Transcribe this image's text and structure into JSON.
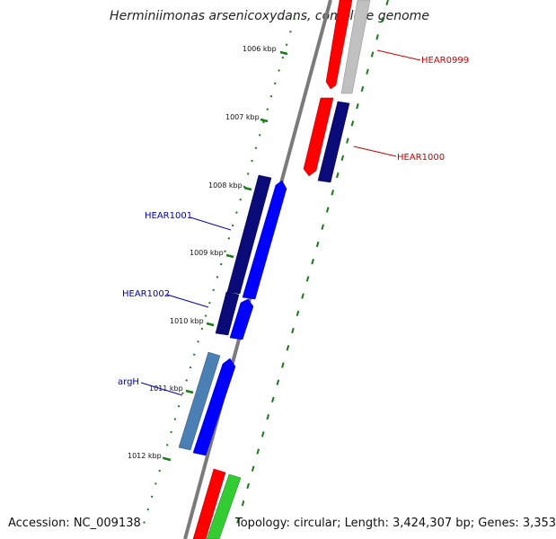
{
  "title": "Herminiimonas arsenicoxydans, complete genome",
  "footer": {
    "accession": "Accession: NC_009138",
    "info": "Topology: circular; Length: 3,424,307 bp; Genes: 3,353"
  },
  "ticks": [
    "1006 kbp",
    "1007 kbp",
    "1008 kbp",
    "1009 kbp",
    "1010 kbp",
    "1011 kbp",
    "1012 kbp"
  ],
  "genes": [
    {
      "label": "HEAR0999",
      "color": "#cc0000"
    },
    {
      "label": "HEAR1000",
      "color": "#cc0000"
    },
    {
      "label": "HEAR1001",
      "color": "#0000aa"
    },
    {
      "label": "HEAR1002",
      "color": "#0000aa"
    },
    {
      "label": "argH",
      "color": "#0000aa"
    }
  ],
  "colors": {
    "backbone": "#7a7a7a",
    "tick": "#1a7a1a",
    "red": "#ff0000",
    "gray": "#c0c0c0",
    "navy": "#0a0a78",
    "blue": "#0000ff",
    "steel": "#4a80b4",
    "green": "#33cc33"
  }
}
